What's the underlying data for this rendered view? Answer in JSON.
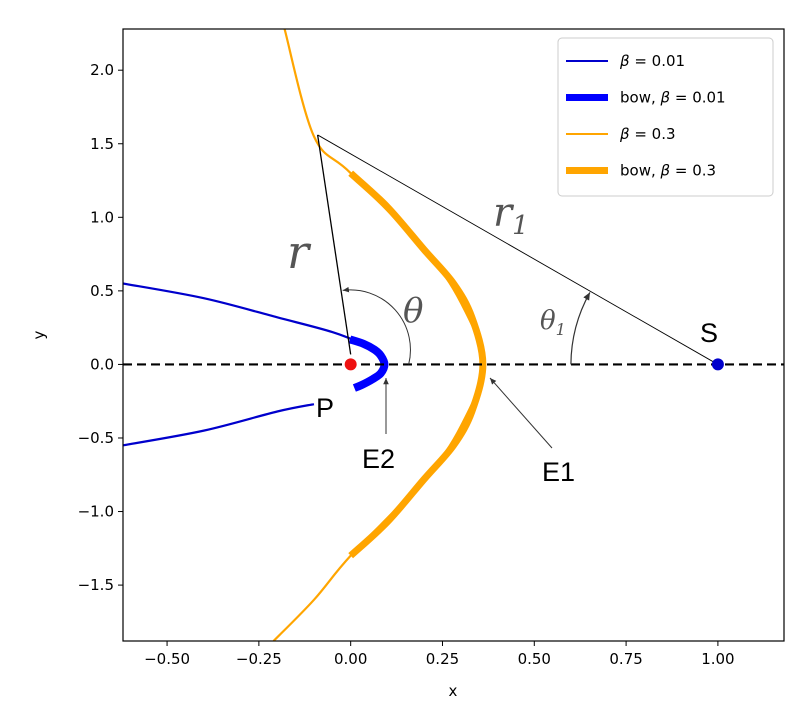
{
  "chart_data": {
    "type": "line",
    "title": "",
    "xlabel": "x",
    "ylabel": "y",
    "xlim": [
      -0.62,
      1.18
    ],
    "ylim": [
      -1.88,
      2.28
    ],
    "xticks": [
      -0.5,
      -0.25,
      0.0,
      0.25,
      0.5,
      0.75,
      1.0
    ],
    "xtick_labels": [
      "−0.50",
      "−0.25",
      "0.00",
      "0.25",
      "0.50",
      "0.75",
      "1.00"
    ],
    "yticks": [
      -1.5,
      -1.0,
      -0.5,
      0.0,
      0.5,
      1.0,
      1.5,
      2.0
    ],
    "ytick_labels": [
      "−1.5",
      "−1.0",
      "−0.5",
      "0.0",
      "0.5",
      "1.0",
      "1.5",
      "2.0"
    ],
    "grid": false,
    "legend_position": "top-right",
    "legend": [
      {
        "prefix": "",
        "greek": "β",
        "suffix": " = 0.01",
        "color": "#0000cc",
        "style": "thin"
      },
      {
        "prefix": "bow, ",
        "greek": "β",
        "suffix": " = 0.01",
        "color": "#0000ff",
        "style": "thick"
      },
      {
        "prefix": "",
        "greek": "β",
        "suffix": " = 0.3",
        "color": "#ffa500",
        "style": "thin"
      },
      {
        "prefix": "bow, ",
        "greek": "β",
        "suffix": " = 0.3",
        "color": "#ffa500",
        "style": "thick"
      }
    ],
    "series": [
      {
        "name": "β = 0.01",
        "color": "#0000cc",
        "width": 2.2,
        "x": [
          -0.62,
          -0.4,
          -0.2,
          -0.05,
          0.03,
          0.07,
          0.09
        ],
        "y": [
          0.55,
          0.45,
          0.32,
          0.22,
          0.14,
          0.07,
          0.0
        ]
      },
      {
        "name": "β = 0.01",
        "color": "#0000cc",
        "width": 2.2,
        "x": [
          -0.62,
          -0.4,
          -0.2,
          -0.1
        ],
        "y": [
          -0.55,
          -0.45,
          -0.32,
          -0.27
        ]
      },
      {
        "name": "bow, β = 0.01",
        "color": "#0000ff",
        "width": 8,
        "x": [
          -0.002,
          0.035,
          0.065,
          0.082,
          0.092,
          0.082,
          0.06,
          0.03,
          0.01
        ],
        "y": [
          0.17,
          0.14,
          0.1,
          0.06,
          0.0,
          -0.06,
          -0.1,
          -0.14,
          -0.16
        ]
      },
      {
        "name": "β = 0.3",
        "color": "#ffa500",
        "width": 2.2,
        "x": [
          -0.18,
          -0.1,
          0.0,
          0.2,
          0.3,
          0.36,
          0.3,
          0.2,
          0.0,
          -0.1,
          -0.21
        ],
        "y": [
          2.28,
          1.55,
          1.3,
          0.78,
          0.42,
          0.0,
          -0.42,
          -0.78,
          -1.3,
          -1.6,
          -1.88
        ]
      },
      {
        "name": "bow, β = 0.3",
        "color": "#ffa500",
        "width": 7,
        "x": [
          0.0,
          0.1,
          0.2,
          0.28,
          0.33,
          0.36,
          0.33,
          0.28,
          0.2,
          0.1,
          0.0
        ],
        "y": [
          1.3,
          1.07,
          0.78,
          0.55,
          0.32,
          0.0,
          -0.32,
          -0.55,
          -0.78,
          -1.07,
          -1.3
        ]
      }
    ],
    "points": [
      {
        "label": "P",
        "x": 0.0,
        "y": 0.0,
        "color": "#ee1111"
      },
      {
        "label": "S",
        "x": 1.0,
        "y": 0.0,
        "color": "#0000cc"
      }
    ],
    "annotations": {
      "r": "r",
      "r1": "r",
      "r1_sub": "1",
      "theta": "θ",
      "theta1": "θ",
      "theta1_sub": "1",
      "E1": "E1",
      "E2": "E2"
    }
  }
}
